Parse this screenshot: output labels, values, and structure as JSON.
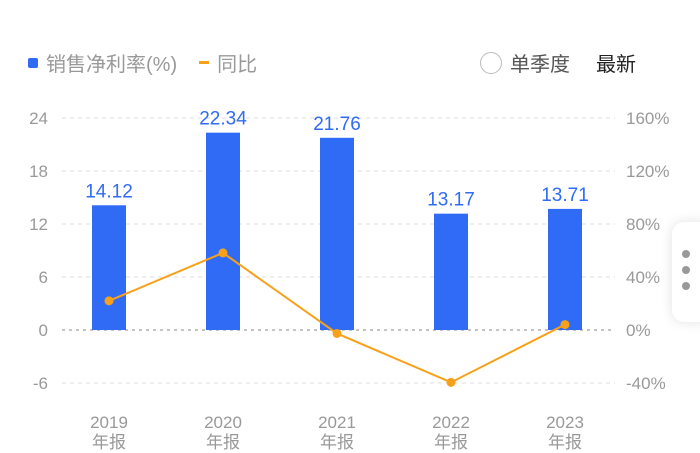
{
  "legend": {
    "series1": "销售净利率(%)",
    "series2": "同比"
  },
  "controls": {
    "single_quarter": "单季度",
    "latest": "最新"
  },
  "colors": {
    "bar": "#2f6bf5",
    "line": "#f7a11a"
  },
  "chart_data": {
    "type": "bar+line",
    "categories": [
      [
        "2019",
        "年报"
      ],
      [
        "2020",
        "年报"
      ],
      [
        "2021",
        "年报"
      ],
      [
        "2022",
        "年报"
      ],
      [
        "2023",
        "年报"
      ]
    ],
    "series": [
      {
        "name": "销售净利率(%)",
        "type": "bar",
        "axis": "left",
        "values": [
          14.12,
          22.34,
          21.76,
          13.17,
          13.71
        ],
        "labels": [
          "14.12",
          "22.34",
          "21.76",
          "13.17",
          "13.71"
        ]
      },
      {
        "name": "同比",
        "type": "line",
        "axis": "right",
        "values": [
          22,
          58.2,
          -2.6,
          -39.5,
          4.1
        ]
      }
    ],
    "left_axis": {
      "ticks": [
        "24",
        "18",
        "12",
        "6",
        "0",
        "-6"
      ],
      "values": [
        24,
        18,
        12,
        6,
        0,
        -6
      ],
      "ylim": [
        -6,
        24
      ]
    },
    "right_axis": {
      "ticks": [
        "160%",
        "120%",
        "80%",
        "40%",
        "0%",
        "-40%"
      ],
      "values": [
        160,
        120,
        80,
        40,
        0,
        -40
      ],
      "ylim": [
        -40,
        160
      ]
    },
    "grid": true
  }
}
